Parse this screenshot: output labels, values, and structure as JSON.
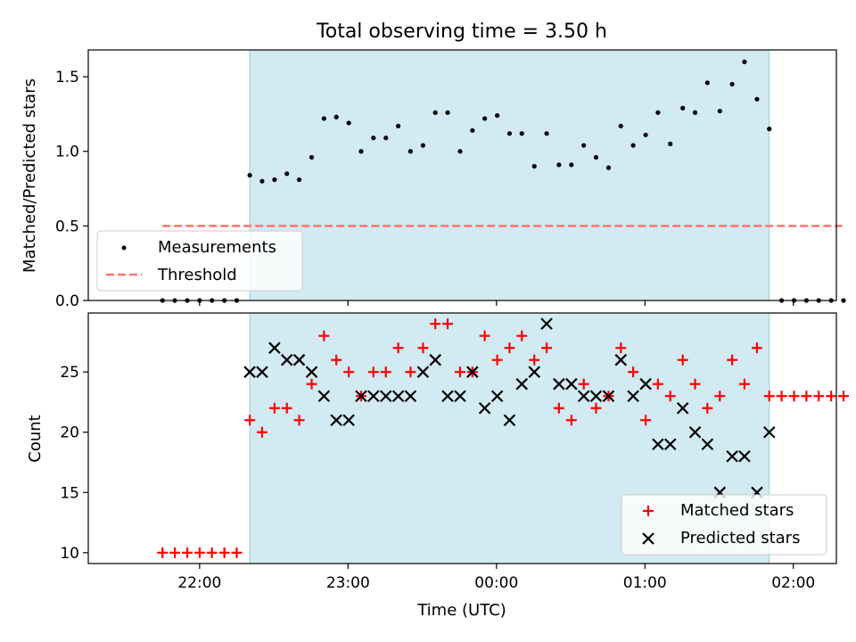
{
  "chart_data": [
    {
      "type": "scatter",
      "title": "Total observing time = 3.50 h",
      "ylabel": "Matched/Predicted stars",
      "xlim": [
        -0.75,
        4.29
      ],
      "ylim": [
        0,
        1.68
      ],
      "x_tick_labels": [
        "22:00",
        "23:00",
        "00:00",
        "01:00",
        "02:00"
      ],
      "x_tick_values": [
        0,
        1,
        2,
        3,
        4
      ],
      "y_ticks": [
        0.0,
        0.5,
        1.0,
        1.5
      ],
      "y_tick_labels": [
        "0.0",
        "0.5",
        "1.0",
        "1.5"
      ],
      "observing_window": [
        0.338,
        3.838
      ],
      "observing_window_color": "#add8e6",
      "threshold": {
        "name": "Threshold",
        "value": 0.5,
        "x_range": [
          -0.25,
          4.33
        ],
        "color": "#ff7070"
      },
      "legend": {
        "placement": "lower-left",
        "entries": [
          "Measurements",
          "Threshold"
        ]
      },
      "series": [
        {
          "name": "Measurements",
          "color": "#000000",
          "x": [
            -0.25,
            -0.167,
            -0.083,
            0.0,
            0.083,
            0.167,
            0.25,
            0.338,
            0.421,
            0.505,
            0.588,
            0.671,
            0.755,
            0.838,
            0.921,
            1.005,
            1.088,
            1.171,
            1.255,
            1.338,
            1.421,
            1.505,
            1.588,
            1.671,
            1.755,
            1.838,
            1.921,
            2.005,
            2.088,
            2.171,
            2.255,
            2.338,
            2.421,
            2.505,
            2.588,
            2.671,
            2.755,
            2.838,
            2.921,
            3.005,
            3.088,
            3.171,
            3.255,
            3.338,
            3.421,
            3.505,
            3.588,
            3.671,
            3.755,
            3.838,
            3.921,
            4.005,
            4.088,
            4.171,
            4.255,
            4.338
          ],
          "y": [
            0,
            0,
            0,
            0,
            0,
            0,
            0,
            0.84,
            0.8,
            0.81,
            0.85,
            0.81,
            0.96,
            1.22,
            1.23,
            1.19,
            1.0,
            1.09,
            1.09,
            1.17,
            1.0,
            1.04,
            1.26,
            1.26,
            1.0,
            1.14,
            1.22,
            1.24,
            1.12,
            1.12,
            0.9,
            1.12,
            0.91,
            0.91,
            1.04,
            0.96,
            0.89,
            1.17,
            1.04,
            1.11,
            1.26,
            1.05,
            1.29,
            1.26,
            1.46,
            1.27,
            1.45,
            1.6,
            1.35,
            1.15,
            0,
            0,
            0,
            0,
            0,
            0
          ]
        }
      ]
    },
    {
      "type": "scatter",
      "xlabel": "Time (UTC)",
      "ylabel": "Count",
      "xlim": [
        -0.75,
        4.29
      ],
      "ylim": [
        9.1,
        29.9
      ],
      "x_tick_labels": [
        "22:00",
        "23:00",
        "00:00",
        "01:00",
        "02:00"
      ],
      "x_tick_values": [
        0,
        1,
        2,
        3,
        4
      ],
      "y_ticks": [
        10,
        15,
        20,
        25
      ],
      "y_tick_labels": [
        "10",
        "15",
        "20",
        "25"
      ],
      "observing_window": [
        0.338,
        3.838
      ],
      "legend": {
        "placement": "lower-right",
        "entries": [
          "Matched stars",
          "Predicted stars"
        ]
      },
      "series": [
        {
          "name": "Matched stars",
          "marker": "plus",
          "color": "#ff0000",
          "x": [
            -0.25,
            -0.167,
            -0.083,
            0.0,
            0.083,
            0.167,
            0.25,
            0.338,
            0.421,
            0.505,
            0.588,
            0.671,
            0.755,
            0.838,
            0.921,
            1.005,
            1.088,
            1.171,
            1.255,
            1.338,
            1.421,
            1.505,
            1.588,
            1.671,
            1.755,
            1.838,
            1.921,
            2.005,
            2.088,
            2.171,
            2.255,
            2.338,
            2.421,
            2.505,
            2.588,
            2.671,
            2.755,
            2.838,
            2.921,
            3.005,
            3.088,
            3.171,
            3.255,
            3.338,
            3.421,
            3.505,
            3.588,
            3.671,
            3.755,
            3.838,
            3.921,
            4.005,
            4.088,
            4.171,
            4.255,
            4.338
          ],
          "y": [
            10,
            10,
            10,
            10,
            10,
            10,
            10,
            21,
            20,
            22,
            22,
            21,
            24,
            28,
            26,
            25,
            23,
            25,
            25,
            27,
            25,
            27,
            29,
            29,
            25,
            25,
            28,
            26,
            27,
            28,
            26,
            27,
            22,
            21,
            24,
            22,
            23,
            27,
            25,
            21,
            24,
            23,
            26,
            24,
            22,
            23,
            26,
            24,
            27,
            23,
            23,
            23,
            23,
            23,
            23,
            23
          ]
        },
        {
          "name": "Predicted stars",
          "marker": "x",
          "color": "#000000",
          "x": [
            0.338,
            0.421,
            0.505,
            0.588,
            0.671,
            0.755,
            0.838,
            0.921,
            1.005,
            1.088,
            1.171,
            1.255,
            1.338,
            1.421,
            1.505,
            1.588,
            1.671,
            1.755,
            1.838,
            1.921,
            2.005,
            2.088,
            2.171,
            2.255,
            2.338,
            2.421,
            2.505,
            2.588,
            2.671,
            2.755,
            2.838,
            2.921,
            3.005,
            3.088,
            3.171,
            3.255,
            3.338,
            3.421,
            3.505,
            3.588,
            3.671,
            3.755,
            3.838
          ],
          "y": [
            25,
            25,
            27,
            26,
            26,
            25,
            23,
            21,
            21,
            23,
            23,
            23,
            23,
            23,
            25,
            26,
            23,
            23,
            25,
            22,
            23,
            21,
            24,
            25,
            29,
            24,
            24,
            23,
            23,
            23,
            26,
            23,
            24,
            19,
            19,
            22,
            20,
            19,
            15,
            18,
            18,
            15,
            20
          ]
        }
      ]
    }
  ]
}
